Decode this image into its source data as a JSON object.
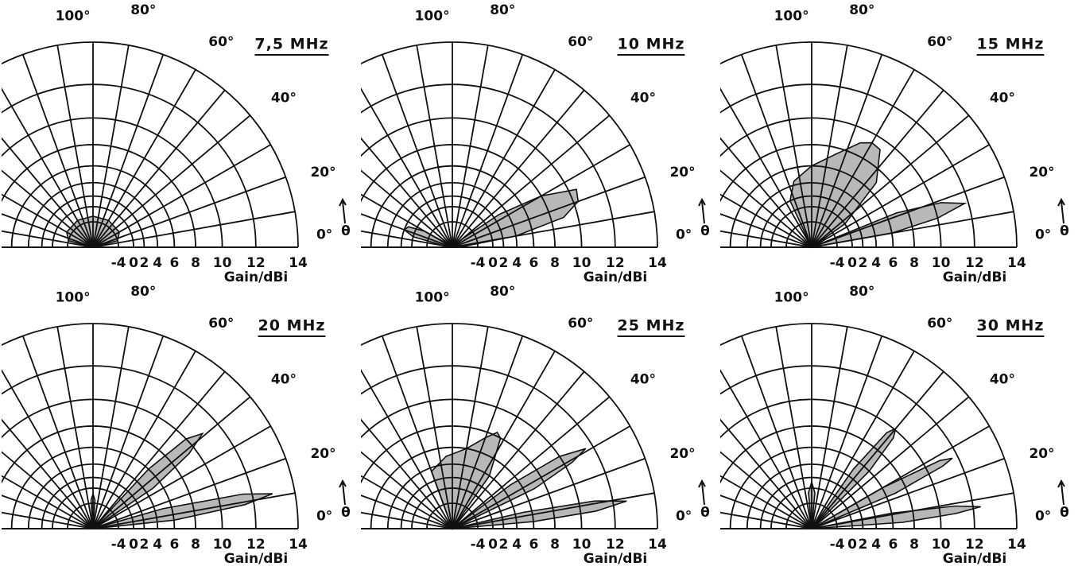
{
  "chart_data": [
    {
      "type": "polar",
      "title": "7,5 MHz",
      "rscale": "field-strength",
      "rlim": [
        -40,
        14
      ],
      "rticks": [
        -4,
        0,
        2,
        4,
        6,
        8,
        10,
        12,
        14
      ],
      "r_label": "Gain/dBi",
      "theta_label": "θ",
      "thetagrid_step": 10,
      "thetaticks": [
        {
          "value": 100,
          "label": "100°"
        },
        {
          "value": 80,
          "label": "80°"
        },
        {
          "value": 60,
          "label": "60°"
        },
        {
          "value": 40,
          "label": "40°"
        },
        {
          "value": 20,
          "label": "20°"
        },
        {
          "value": 0,
          "label": "0°"
        }
      ],
      "series": [
        {
          "color": "#b8b8b8",
          "theta": [
            0,
            15,
            30,
            60,
            90,
            120,
            150,
            165,
            180
          ],
          "r": [
            -40,
            -4,
            -2.5,
            -2.3,
            -2.3,
            -2.3,
            -2.5,
            -4,
            -40
          ]
        }
      ]
    },
    {
      "type": "polar",
      "title": "10 MHz",
      "rscale": "field-strength",
      "rlim": [
        -40,
        14
      ],
      "rticks": [
        -4,
        0,
        2,
        4,
        6,
        8,
        10,
        12,
        14
      ],
      "r_label": "Gain/dBi",
      "theta_label": "θ",
      "thetagrid_step": 10,
      "thetaticks": [
        {
          "value": 100,
          "label": "100°"
        },
        {
          "value": 80,
          "label": "80°"
        },
        {
          "value": 60,
          "label": "60°"
        },
        {
          "value": 40,
          "label": "40°"
        },
        {
          "value": 20,
          "label": "20°"
        },
        {
          "value": 0,
          "label": "0°"
        }
      ],
      "series": [
        {
          "color": "#b8b8b8",
          "theta": [
            2,
            5,
            10,
            15,
            20,
            25,
            30,
            35,
            40,
            44
          ],
          "r": [
            -40,
            -10,
            4,
            9,
            10.3,
            10.5,
            8,
            3,
            -10,
            -40
          ]
        },
        {
          "color": "#b8b8b8",
          "theta": [
            142,
            145,
            150,
            155,
            160,
            165,
            170,
            173
          ],
          "r": [
            -40,
            -15,
            -2,
            1.5,
            2,
            0,
            -15,
            -40
          ]
        }
      ]
    },
    {
      "type": "polar",
      "title": "15 MHz",
      "rscale": "field-strength",
      "rlim": [
        -40,
        14
      ],
      "rticks": [
        -4,
        0,
        2,
        4,
        6,
        8,
        10,
        12,
        14
      ],
      "r_label": "Gain/dBi",
      "theta_label": "θ",
      "thetagrid_step": 10,
      "thetaticks": [
        {
          "value": 100,
          "label": "100°"
        },
        {
          "value": 80,
          "label": "80°"
        },
        {
          "value": 60,
          "label": "60°"
        },
        {
          "value": 40,
          "label": "40°"
        },
        {
          "value": 20,
          "label": "20°"
        },
        {
          "value": 0,
          "label": "0°"
        }
      ],
      "series": [
        {
          "color": "#b8b8b8",
          "theta": [
            25,
            35,
            45,
            55,
            60,
            65,
            75,
            90,
            105,
            115,
            125
          ],
          "r": [
            -40,
            0,
            7,
            9.3,
            9.4,
            9,
            7.5,
            6,
            4.5,
            2,
            -40
          ]
        },
        {
          "color": "#b8b8b8",
          "theta": [
            5,
            10,
            13,
            16,
            19,
            22,
            26
          ],
          "r": [
            -40,
            6,
            10,
            11.8,
            10.5,
            7,
            -40
          ]
        }
      ]
    },
    {
      "type": "polar",
      "title": "20 MHz",
      "rscale": "field-strength",
      "rlim": [
        -40,
        14
      ],
      "rticks": [
        -4,
        0,
        2,
        4,
        6,
        8,
        10,
        12,
        14
      ],
      "r_label": "Gain/dBi",
      "theta_label": "θ",
      "thetagrid_step": 10,
      "thetaticks": [
        {
          "value": 100,
          "label": "100°"
        },
        {
          "value": 80,
          "label": "80°"
        },
        {
          "value": 60,
          "label": "60°"
        },
        {
          "value": 40,
          "label": "40°"
        },
        {
          "value": 20,
          "label": "20°"
        },
        {
          "value": 0,
          "label": "0°"
        }
      ],
      "series": [
        {
          "color": "#b8b8b8",
          "theta": [
            30,
            34,
            38,
            41,
            44,
            47,
            52
          ],
          "r": [
            -40,
            5,
            9.5,
            11,
            10,
            6,
            -40
          ]
        },
        {
          "color": "#b8b8b8",
          "theta": [
            3,
            6,
            9,
            11,
            13,
            16,
            19
          ],
          "r": [
            -40,
            6,
            11.5,
            13,
            11.5,
            5,
            -40
          ]
        },
        {
          "color": "#b8b8b8",
          "theta": [
            80,
            86,
            90,
            94,
            100
          ],
          "r": [
            -40,
            -3,
            -1.3,
            -3,
            -40
          ]
        }
      ]
    },
    {
      "type": "polar",
      "title": "25 MHz",
      "rscale": "field-strength",
      "rlim": [
        -40,
        14
      ],
      "rticks": [
        -4,
        0,
        2,
        4,
        6,
        8,
        10,
        12,
        14
      ],
      "r_label": "Gain/dBi",
      "theta_label": "θ",
      "thetagrid_step": 10,
      "thetaticks": [
        {
          "value": 100,
          "label": "100°"
        },
        {
          "value": 80,
          "label": "80°"
        },
        {
          "value": 60,
          "label": "60°"
        },
        {
          "value": 40,
          "label": "40°"
        },
        {
          "value": 20,
          "label": "20°"
        },
        {
          "value": 0,
          "label": "0°"
        }
      ],
      "series": [
        {
          "color": "#b8b8b8",
          "theta": [
            50,
            55,
            62,
            65,
            70,
            80,
            95,
            110,
            120
          ],
          "r": [
            -40,
            4,
            8,
            8.3,
            7.5,
            6,
            5,
            3.5,
            -40
          ]
        },
        {
          "color": "#b8b8b8",
          "theta": [
            22,
            26,
            29,
            31,
            34,
            37,
            40
          ],
          "r": [
            -40,
            7,
            10.5,
            11.6,
            10,
            5,
            -40
          ]
        },
        {
          "color": "#b8b8b8",
          "theta": [
            2,
            5,
            7,
            9,
            11,
            13,
            16
          ],
          "r": [
            -40,
            6,
            11,
            12.7,
            11,
            5,
            -40
          ]
        }
      ]
    },
    {
      "type": "polar",
      "title": "30 MHz",
      "rscale": "field-strength",
      "rlim": [
        -40,
        14
      ],
      "rticks": [
        -4,
        0,
        2,
        4,
        6,
        8,
        10,
        12,
        14
      ],
      "r_label": "Gain/dBi",
      "theta_label": "θ",
      "thetagrid_step": 10,
      "thetaticks": [
        {
          "value": 100,
          "label": "100°"
        },
        {
          "value": 80,
          "label": "80°"
        },
        {
          "value": 60,
          "label": "60°"
        },
        {
          "value": 40,
          "label": "40°"
        },
        {
          "value": 20,
          "label": "20°"
        },
        {
          "value": 0,
          "label": "0°"
        }
      ],
      "series": [
        {
          "color": "#b8b8b8",
          "theta": [
            42,
            45,
            48,
            50,
            52,
            55,
            58
          ],
          "r": [
            -40,
            6,
            9.5,
            10.1,
            9.5,
            5,
            -40
          ]
        },
        {
          "color": "#b8b8b8",
          "theta": [
            20,
            23,
            25.5,
            26.6,
            28,
            30,
            33
          ],
          "r": [
            -40,
            7,
            11,
            11.7,
            11,
            6,
            -40
          ]
        },
        {
          "color": "#b8b8b8",
          "theta": [
            1,
            4,
            6,
            7.4,
            9,
            11,
            14
          ],
          "r": [
            -40,
            7,
            11,
            12.4,
            11,
            6,
            -40
          ]
        },
        {
          "color": "#b8b8b8",
          "theta": [
            80,
            85,
            90,
            95,
            100
          ],
          "r": [
            -40,
            -1,
            1.2,
            -1,
            -40
          ]
        }
      ]
    }
  ]
}
